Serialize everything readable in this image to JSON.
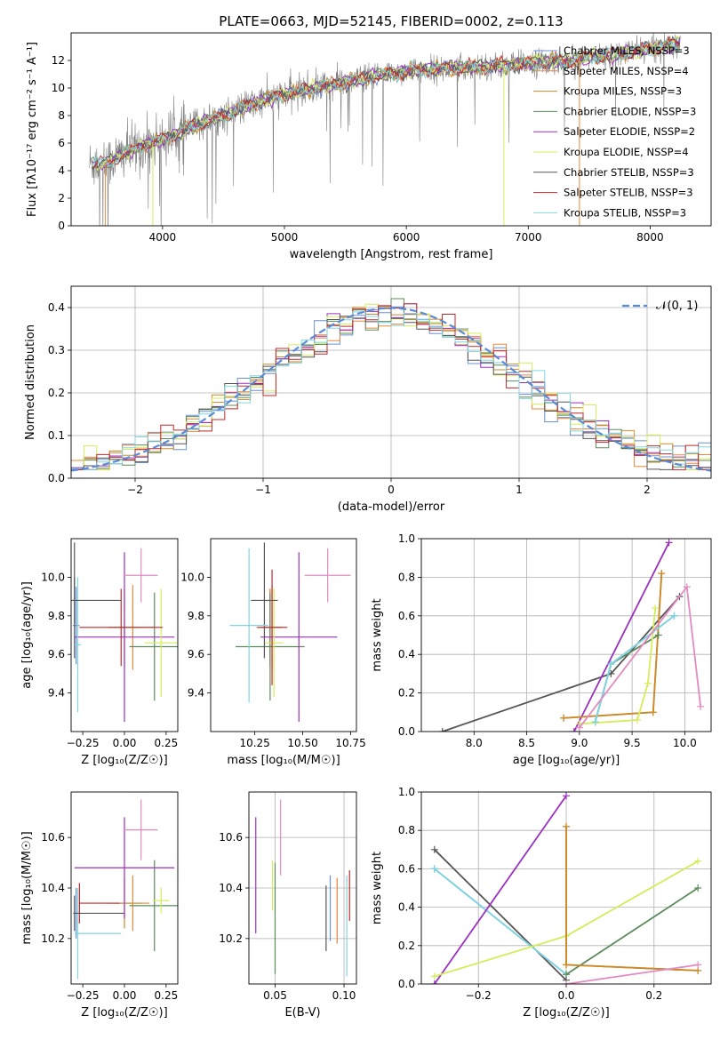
{
  "figure_title": "PLATE=0663, MJD=52145, FIBERID=0002, z=0.113",
  "colors": {
    "chabrier_miles": "#6b8fd6",
    "salpeter_miles": "#e8883a",
    "kroupa_miles": "#c98a2a",
    "chabrier_elodie": "#5d8a5d",
    "salpeter_elodie": "#9b30c0",
    "kroupa_elodie": "#d4ec5a",
    "chabrier_stelib": "#555555",
    "salpeter_stelib": "#c0282c",
    "kroupa_stelib": "#7fd6e0",
    "data": "#808080",
    "gauss": "#5b8bd6"
  },
  "chart_data": [
    {
      "id": "spectrum",
      "type": "line",
      "xlabel": "wavelength [Angstrom, rest frame]",
      "ylabel": "Flux [fλ10⁻¹⁷ erg cm⁻² s⁻¹ A⁻¹]",
      "xlim": [
        3250,
        8500
      ],
      "ylim": [
        0,
        14
      ],
      "xticks": [
        4000,
        5000,
        6000,
        7000,
        8000
      ],
      "yticks": [
        0,
        2,
        4,
        6,
        8,
        10,
        12
      ],
      "grid": false,
      "legend_position": "top-right",
      "legend": [
        {
          "text": "Chabrier MILES, NSSP=3",
          "color_key": "chabrier_miles"
        },
        {
          "text": "Salpeter MILES, NSSP=4",
          "color_key": "salpeter_miles"
        },
        {
          "text": "Kroupa MILES, NSSP=3",
          "color_key": "kroupa_miles"
        },
        {
          "text": "Chabrier ELODIE, NSSP=3",
          "color_key": "chabrier_elodie"
        },
        {
          "text": "Salpeter ELODIE, NSSP=2",
          "color_key": "salpeter_elodie"
        },
        {
          "text": "Kroupa ELODIE, NSSP=4",
          "color_key": "kroupa_elodie"
        },
        {
          "text": "Chabrier STELIB, NSSP=3",
          "color_key": "chabrier_stelib"
        },
        {
          "text": "Salpeter STELIB, NSSP=3",
          "color_key": "salpeter_stelib"
        },
        {
          "text": "Kroupa STELIB, NSSP=3",
          "color_key": "kroupa_stelib"
        }
      ],
      "continuum": [
        [
          3400,
          4.5
        ],
        [
          3550,
          4.6
        ],
        [
          3700,
          5.3
        ],
        [
          3900,
          6.0
        ],
        [
          4100,
          6.6
        ],
        [
          4300,
          7.4
        ],
        [
          4500,
          8.0
        ],
        [
          4700,
          8.7
        ],
        [
          4900,
          9.3
        ],
        [
          5100,
          9.7
        ],
        [
          5300,
          10.1
        ],
        [
          5500,
          10.4
        ],
        [
          5700,
          10.8
        ],
        [
          5900,
          11.1
        ],
        [
          6100,
          11.3
        ],
        [
          6300,
          11.4
        ],
        [
          6500,
          11.5
        ],
        [
          6700,
          11.6
        ],
        [
          6900,
          11.7
        ],
        [
          7100,
          11.9
        ],
        [
          7300,
          12.0
        ],
        [
          7500,
          12.2
        ],
        [
          7700,
          12.4
        ],
        [
          7900,
          12.7
        ],
        [
          8100,
          13.0
        ],
        [
          8250,
          13.3
        ]
      ]
    },
    {
      "id": "residuals",
      "type": "step",
      "xlabel": "(data-model)/error",
      "ylabel": "Normed distribution",
      "xlim": [
        -2.5,
        2.5
      ],
      "ylim": [
        0,
        0.45
      ],
      "xticks": [
        -2,
        -1,
        0,
        1,
        2
      ],
      "yticks": [
        0.0,
        0.1,
        0.2,
        0.3,
        0.4
      ],
      "grid": true,
      "legend_position": "top-right",
      "legend": [
        {
          "text": "𝒩(0, 1)",
          "color_key": "gauss"
        }
      ],
      "bin_width": 0.1
    },
    {
      "id": "z-age",
      "type": "errorbar",
      "xlabel": "Z [log₁₀(Z/Z☉)]",
      "ylabel": "age  [log₁₀(age/yr)]",
      "xlim": [
        -0.32,
        0.32
      ],
      "ylim": [
        9.2,
        10.2
      ],
      "xticks": [
        -0.25,
        0.0,
        0.25
      ],
      "yticks": [
        9.4,
        9.6,
        9.8,
        10.0
      ],
      "grid": false,
      "points": [
        {
          "c": "chabrier_miles",
          "x": -0.29,
          "xe": 0.02,
          "y": 9.75,
          "ye": 0.2
        },
        {
          "c": "salpeter_miles",
          "x": 0.05,
          "xe": 0.13,
          "y": 9.74,
          "ye": 0.22
        },
        {
          "c": "kroupa_miles",
          "x": 0.0,
          "xe": 0.1,
          "y": 9.74,
          "ye": 0.2
        },
        {
          "c": "chabrier_elodie",
          "x": 0.18,
          "xe": 0.15,
          "y": 9.64,
          "ye": 0.28
        },
        {
          "c": "salpeter_elodie",
          "x": 0.0,
          "xe": 0.3,
          "y": 9.69,
          "ye": 0.44
        },
        {
          "c": "kroupa_elodie",
          "x": 0.22,
          "xe": 0.1,
          "y": 9.66,
          "ye": 0.28
        },
        {
          "c": "chabrier_stelib",
          "x": -0.3,
          "xe": 0.0,
          "y": 9.88,
          "ye": 0.3
        },
        {
          "c": "salpeter_stelib",
          "x": -0.02,
          "xe": 0.25,
          "y": 9.74,
          "ye": 0.2
        },
        {
          "c": "kroupa_stelib",
          "x": -0.28,
          "xe": 0.02,
          "y": 9.65,
          "ye": 0.35
        },
        {
          "c": "pink",
          "x": 0.1,
          "xe": 0.1,
          "y": 10.01,
          "ye": 0.14
        },
        {
          "c": "chabrier_stelib",
          "x": -0.3,
          "xe": 0.28,
          "y": 9.88,
          "ye": 0.12
        }
      ]
    },
    {
      "id": "mass-age",
      "type": "errorbar",
      "xlabel": "mass [log₁₀(M/M☉)]",
      "ylabel": "",
      "xlim": [
        10.02,
        10.78
      ],
      "ylim": [
        9.2,
        10.2
      ],
      "xticks": [
        10.25,
        10.5,
        10.75
      ],
      "tick_labels": [
        "10.25",
        "10.50",
        "10.75"
      ],
      "yticks": [
        9.4,
        9.6,
        9.8,
        10.0
      ],
      "grid": false,
      "points": [
        {
          "c": "chabrier_miles",
          "x": 10.33,
          "xe": 0.05,
          "y": 9.74,
          "ye": 0.2
        },
        {
          "c": "salpeter_miles",
          "x": 10.34,
          "xe": 0.06,
          "y": 9.74,
          "ye": 0.22
        },
        {
          "c": "kroupa_miles",
          "x": 10.33,
          "xe": 0.06,
          "y": 9.74,
          "ye": 0.2
        },
        {
          "c": "chabrier_elodie",
          "x": 10.33,
          "xe": 0.18,
          "y": 9.64,
          "ye": 0.28
        },
        {
          "c": "salpeter_elodie",
          "x": 10.48,
          "xe": 0.2,
          "y": 9.69,
          "ye": 0.44
        },
        {
          "c": "kroupa_elodie",
          "x": 10.35,
          "xe": 0.05,
          "y": 9.66,
          "ye": 0.28
        },
        {
          "c": "chabrier_stelib",
          "x": 10.3,
          "xe": 0.07,
          "y": 9.88,
          "ye": 0.3
        },
        {
          "c": "salpeter_stelib",
          "x": 10.34,
          "xe": 0.08,
          "y": 9.74,
          "ye": 0.3
        },
        {
          "c": "kroupa_stelib",
          "x": 10.22,
          "xe": 0.1,
          "y": 9.75,
          "ye": 0.4
        },
        {
          "c": "pink",
          "x": 10.63,
          "xe": 0.12,
          "y": 10.01,
          "ye": 0.14
        }
      ]
    },
    {
      "id": "age-weight",
      "type": "line",
      "xlabel": "age  [log₁₀(age/yr)]",
      "ylabel": "mass weight",
      "xlim": [
        7.5,
        10.25
      ],
      "ylim": [
        0,
        1.0
      ],
      "xticks": [
        8.0,
        8.5,
        9.0,
        9.5,
        10.0
      ],
      "yticks": [
        0.0,
        0.2,
        0.4,
        0.6,
        0.8,
        1.0
      ],
      "grid": true,
      "series": [
        {
          "c": "chabrier_stelib",
          "x": [
            7.7,
            9.3,
            9.95
          ],
          "y": [
            0.0,
            0.3,
            0.7
          ]
        },
        {
          "c": "salpeter_elodie",
          "x": [
            8.95,
            9.85
          ],
          "y": [
            0.0,
            0.98
          ]
        },
        {
          "c": "salpeter_miles",
          "x": [
            8.85,
            9.7,
            9.78
          ],
          "y": [
            0.07,
            0.1,
            0.82
          ]
        },
        {
          "c": "kroupa_miles",
          "x": [
            8.85,
            9.7,
            9.78
          ],
          "y": [
            0.07,
            0.1,
            0.82
          ]
        },
        {
          "c": "chabrier_elodie",
          "x": [
            9.15,
            9.3,
            9.75
          ],
          "y": [
            0.05,
            0.35,
            0.5
          ]
        },
        {
          "c": "kroupa_elodie",
          "x": [
            9.0,
            9.55,
            9.65,
            9.72
          ],
          "y": [
            0.04,
            0.06,
            0.25,
            0.64
          ]
        },
        {
          "c": "chabrier_miles",
          "x": [
            9.15,
            9.3,
            9.9
          ],
          "y": [
            0.05,
            0.35,
            0.6
          ]
        },
        {
          "c": "kroupa_stelib",
          "x": [
            9.15,
            9.3,
            9.9
          ],
          "y": [
            0.05,
            0.35,
            0.6
          ]
        },
        {
          "c": "pink",
          "x": [
            9.0,
            10.02,
            10.15
          ],
          "y": [
            0.02,
            0.75,
            0.13
          ]
        }
      ]
    },
    {
      "id": "z-mass",
      "type": "errorbar",
      "xlabel": "Z [log₁₀(Z/Z☉)]",
      "ylabel": "mass [log₁₀(M/M☉)]",
      "xlim": [
        -0.32,
        0.32
      ],
      "ylim": [
        10.02,
        10.78
      ],
      "xticks": [
        -0.25,
        0.0,
        0.25
      ],
      "yticks": [
        10.2,
        10.4,
        10.6
      ],
      "grid": false,
      "points": [
        {
          "c": "chabrier_miles",
          "x": -0.29,
          "xe": 0.02,
          "y": 10.3,
          "ye": 0.1
        },
        {
          "c": "salpeter_miles",
          "x": 0.05,
          "xe": 0.1,
          "y": 10.34,
          "ye": 0.11
        },
        {
          "c": "kroupa_miles",
          "x": 0.0,
          "xe": 0.1,
          "y": 10.34,
          "ye": 0.1
        },
        {
          "c": "chabrier_elodie",
          "x": 0.18,
          "xe": 0.15,
          "y": 10.33,
          "ye": 0.18
        },
        {
          "c": "salpeter_elodie",
          "x": 0.0,
          "xe": 0.3,
          "y": 10.48,
          "ye": 0.2
        },
        {
          "c": "kroupa_elodie",
          "x": 0.22,
          "xe": 0.05,
          "y": 10.35,
          "ye": 0.05
        },
        {
          "c": "chabrier_stelib",
          "x": -0.3,
          "xe": 0.0,
          "y": 10.3,
          "ye": 0.07
        },
        {
          "c": "salpeter_stelib",
          "x": -0.27,
          "xe": 0.0,
          "y": 10.34,
          "ye": 0.08
        },
        {
          "c": "kroupa_stelib",
          "x": -0.28,
          "xe": 0.02,
          "y": 10.22,
          "ye": 0.18
        },
        {
          "c": "pink",
          "x": 0.1,
          "xe": 0.1,
          "y": 10.63,
          "ye": 0.12
        },
        {
          "c": "chabrier_stelib",
          "x": -0.15,
          "xe": 0.15,
          "y": 10.3,
          "ye": 0.0
        },
        {
          "c": "salpeter_stelib",
          "x": -0.15,
          "xe": 0.12,
          "y": 10.34,
          "ye": 0.0
        },
        {
          "c": "kroupa_stelib",
          "x": -0.15,
          "xe": 0.13,
          "y": 10.22,
          "ye": 0.0
        }
      ]
    },
    {
      "id": "ebv-mass",
      "type": "errorbar",
      "xlabel": "E(B-V)",
      "ylabel": "",
      "xlim": [
        0.031,
        0.109
      ],
      "ylim": [
        10.02,
        10.78
      ],
      "xticks": [
        0.05,
        0.1
      ],
      "tick_labels": [
        "0.05",
        "0.10"
      ],
      "yticks": [
        10.2,
        10.4,
        10.6
      ],
      "grid": true,
      "points": [
        {
          "c": "salpeter_elodie",
          "x": 0.036,
          "xe": 0.0,
          "y": 10.45,
          "ye": 0.23
        },
        {
          "c": "kroupa_elodie",
          "x": 0.048,
          "xe": 0.0,
          "y": 10.41,
          "ye": 0.1
        },
        {
          "c": "chabrier_elodie",
          "x": 0.05,
          "xe": 0.0,
          "y": 10.28,
          "ye": 0.22
        },
        {
          "c": "pink",
          "x": 0.054,
          "xe": 0.0,
          "y": 10.6,
          "ye": 0.15
        },
        {
          "c": "chabrier_stelib",
          "x": 0.087,
          "xe": 0.0,
          "y": 10.28,
          "ye": 0.13
        },
        {
          "c": "chabrier_miles",
          "x": 0.09,
          "xe": 0.0,
          "y": 10.32,
          "ye": 0.13
        },
        {
          "c": "salpeter_miles",
          "x": 0.095,
          "xe": 0.0,
          "y": 10.31,
          "ye": 0.13
        },
        {
          "c": "kroupa_stelib",
          "x": 0.102,
          "xe": 0.0,
          "y": 10.25,
          "ye": 0.2
        },
        {
          "c": "salpeter_stelib",
          "x": 0.104,
          "xe": 0.0,
          "y": 10.37,
          "ye": 0.1
        }
      ]
    },
    {
      "id": "z-weight",
      "type": "line",
      "xlabel": "Z [log₁₀(Z/Z☉)]",
      "ylabel": "mass weight",
      "xlim": [
        -0.33,
        0.33
      ],
      "ylim": [
        0,
        1.0
      ],
      "xticks": [
        -0.2,
        0.0,
        0.2
      ],
      "tick_labels": [
        "−0.2",
        "0.0",
        "0.2"
      ],
      "yticks": [
        0.0,
        0.2,
        0.4,
        0.6,
        0.8,
        1.0
      ],
      "grid": true,
      "series": [
        {
          "c": "chabrier_stelib",
          "x": [
            -0.3,
            0.0
          ],
          "y": [
            0.7,
            0.02
          ]
        },
        {
          "c": "chabrier_miles",
          "x": [
            -0.3,
            0.0
          ],
          "y": [
            0.6,
            0.05
          ]
        },
        {
          "c": "kroupa_stelib",
          "x": [
            -0.3,
            0.0
          ],
          "y": [
            0.6,
            0.05
          ]
        },
        {
          "c": "salpeter_elodie",
          "x": [
            -0.3,
            0.0
          ],
          "y": [
            0.0,
            0.98
          ]
        },
        {
          "c": "kroupa_elodie",
          "x": [
            -0.3,
            0.0,
            0.3
          ],
          "y": [
            0.04,
            0.25,
            0.64
          ]
        },
        {
          "c": "chabrier_elodie",
          "x": [
            0.0,
            0.3
          ],
          "y": [
            0.05,
            0.5
          ]
        },
        {
          "c": "salpeter_miles",
          "x": [
            0.0,
            0.0,
            0.3
          ],
          "y": [
            0.82,
            0.1,
            0.07
          ]
        },
        {
          "c": "kroupa_miles",
          "x": [
            0.0,
            0.0,
            0.3
          ],
          "y": [
            0.82,
            0.1,
            0.07
          ]
        },
        {
          "c": "pink",
          "x": [
            0.0,
            0.3
          ],
          "y": [
            0.0,
            0.1
          ]
        }
      ]
    }
  ]
}
